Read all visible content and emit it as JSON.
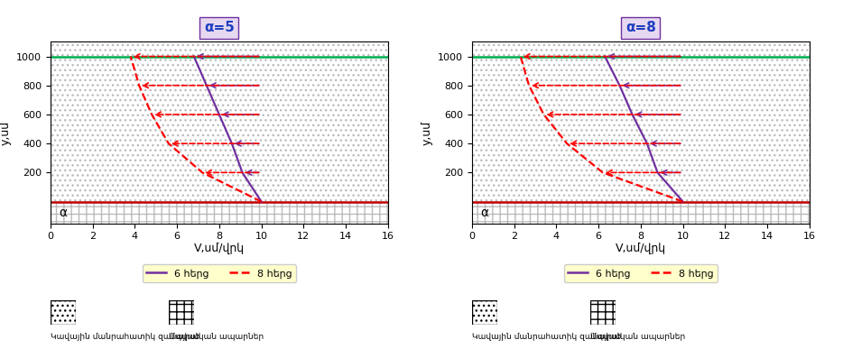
{
  "chart_data": [
    {
      "type": "line",
      "title": "α=5",
      "orientation": "horizontal",
      "x_label": "V,սմ/վրկ",
      "y_label": "y,սմ",
      "angle_label": "α",
      "xlim": [
        0,
        16
      ],
      "xticks": [
        0,
        2,
        4,
        6,
        8,
        10,
        12,
        14,
        16
      ],
      "ylim": [
        -150,
        1100
      ],
      "yticks": [
        200,
        400,
        600,
        800,
        1000
      ],
      "y": [
        0,
        200,
        400,
        600,
        800,
        1000
      ],
      "legend": "below",
      "key_labels": [
        "Կավային մանրահատիկ զանգված",
        "Մայրական ապարներ"
      ],
      "series": [
        {
          "name": "6 հերց",
          "color": "#7030a0",
          "line_style": "solid",
          "values": [
            10,
            9.1,
            8.6,
            8.0,
            7.4,
            6.8
          ]
        },
        {
          "name": "8 հերց",
          "color": "#ff0000",
          "line_style": "dashed",
          "values": [
            10,
            7.2,
            5.6,
            4.8,
            4.2,
            3.8
          ]
        }
      ]
    },
    {
      "type": "line",
      "title": "α=8",
      "orientation": "horizontal",
      "x_label": "V,սմ/վրկ",
      "y_label": "y,սմ",
      "angle_label": "α",
      "xlim": [
        0,
        16
      ],
      "xticks": [
        0,
        2,
        4,
        6,
        8,
        10,
        12,
        14,
        16
      ],
      "ylim": [
        -150,
        1100
      ],
      "yticks": [
        200,
        400,
        600,
        800,
        1000
      ],
      "y": [
        0,
        200,
        400,
        600,
        800,
        1000
      ],
      "legend": "below",
      "key_labels": [
        "Կավային մանրահատիկ զանգված",
        "Մայրական ապարներ"
      ],
      "series": [
        {
          "name": "6 հերց",
          "color": "#7030a0",
          "line_style": "solid",
          "values": [
            10,
            8.8,
            8.3,
            7.6,
            7.0,
            6.3
          ]
        },
        {
          "name": "8 հերց",
          "color": "#ff0000",
          "line_style": "dashed",
          "values": [
            10,
            6.2,
            4.5,
            3.4,
            2.7,
            2.3
          ]
        }
      ]
    }
  ]
}
